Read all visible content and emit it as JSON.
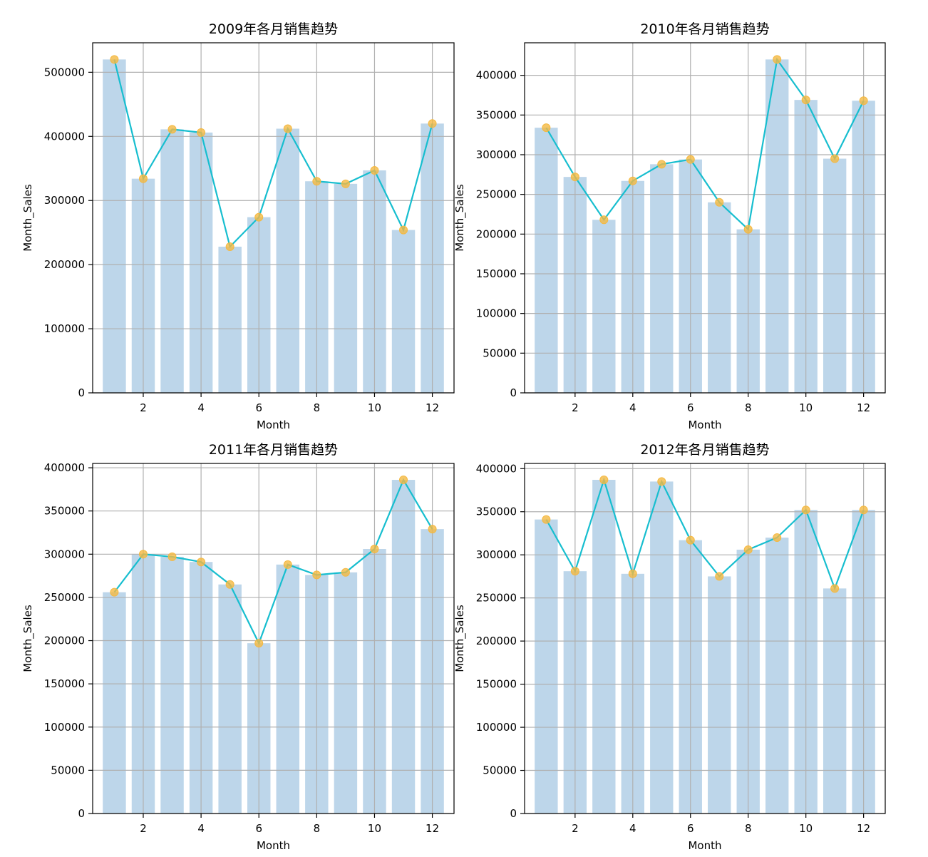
{
  "colors": {
    "bar": "#bdd6ea",
    "line": "#17becf",
    "marker": "#f4b942",
    "grid": "#b0b0b0",
    "axis": "#000000"
  },
  "chart_data": [
    {
      "type": "bar",
      "title": "2009年各月销售趋势",
      "xlabel": "Month",
      "ylabel": "Month_Sales",
      "x": [
        1,
        2,
        3,
        4,
        5,
        6,
        7,
        8,
        9,
        10,
        11,
        12
      ],
      "values": [
        520000,
        334000,
        411000,
        406000,
        228000,
        274000,
        412000,
        330000,
        326000,
        347000,
        254000,
        420000
      ],
      "line_overlay": true,
      "xticks": [
        2,
        4,
        6,
        8,
        10,
        12
      ],
      "yticks": [
        0,
        100000,
        200000,
        300000,
        400000,
        500000
      ],
      "xlim": [
        0.25,
        12.75
      ],
      "ylim": [
        0,
        546000
      ],
      "grid": true
    },
    {
      "type": "bar",
      "title": "2010年各月销售趋势",
      "xlabel": "Month",
      "ylabel": "Month_Sales",
      "x": [
        1,
        2,
        3,
        4,
        5,
        6,
        7,
        8,
        9,
        10,
        11,
        12
      ],
      "values": [
        334000,
        272000,
        218000,
        267000,
        288000,
        294000,
        240000,
        206000,
        420000,
        369000,
        295000,
        368000
      ],
      "line_overlay": true,
      "xticks": [
        2,
        4,
        6,
        8,
        10,
        12
      ],
      "yticks": [
        0,
        50000,
        100000,
        150000,
        200000,
        250000,
        300000,
        350000,
        400000
      ],
      "xlim": [
        0.25,
        12.75
      ],
      "ylim": [
        0,
        441000
      ],
      "grid": true
    },
    {
      "type": "bar",
      "title": "2011年各月销售趋势",
      "xlabel": "Month",
      "ylabel": "Month_Sales",
      "x": [
        1,
        2,
        3,
        4,
        5,
        6,
        7,
        8,
        9,
        10,
        11,
        12
      ],
      "values": [
        256000,
        300000,
        297000,
        291000,
        265000,
        197000,
        288000,
        276000,
        279000,
        306000,
        386000,
        329000
      ],
      "line_overlay": true,
      "xticks": [
        2,
        4,
        6,
        8,
        10,
        12
      ],
      "yticks": [
        0,
        50000,
        100000,
        150000,
        200000,
        250000,
        300000,
        350000,
        400000
      ],
      "xlim": [
        0.25,
        12.75
      ],
      "ylim": [
        0,
        405000
      ],
      "grid": true
    },
    {
      "type": "bar",
      "title": "2012年各月销售趋势",
      "xlabel": "Month",
      "ylabel": "Month_Sales",
      "x": [
        1,
        2,
        3,
        4,
        5,
        6,
        7,
        8,
        9,
        10,
        11,
        12
      ],
      "values": [
        341000,
        281000,
        387000,
        278000,
        385000,
        317000,
        275000,
        306000,
        320000,
        352000,
        261000,
        352000
      ],
      "line_overlay": true,
      "xticks": [
        2,
        4,
        6,
        8,
        10,
        12
      ],
      "yticks": [
        0,
        50000,
        100000,
        150000,
        200000,
        250000,
        300000,
        350000,
        400000
      ],
      "xlim": [
        0.25,
        12.75
      ],
      "ylim": [
        0,
        406000
      ],
      "grid": true
    }
  ]
}
